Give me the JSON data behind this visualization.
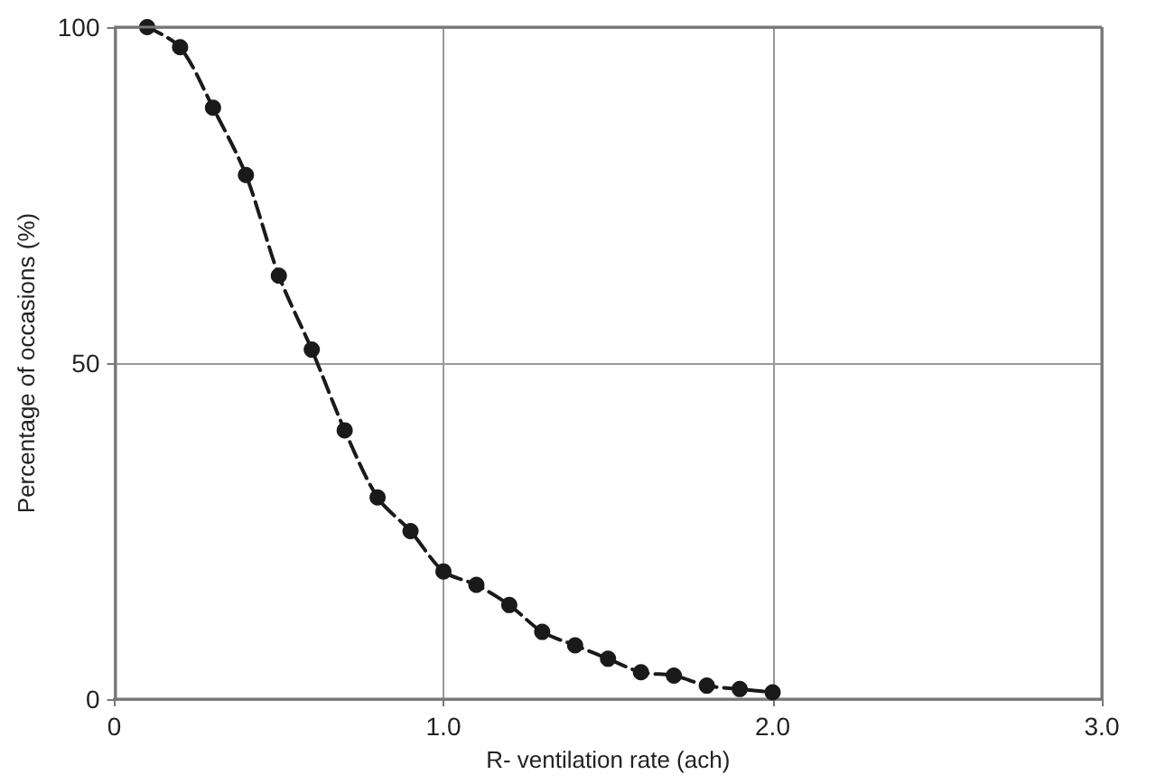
{
  "chart_data": {
    "type": "line",
    "xlabel": "R- ventilation rate (ach)",
    "ylabel": "Percentage of occasions (%)",
    "x": [
      0.1,
      0.2,
      0.3,
      0.4,
      0.5,
      0.6,
      0.7,
      0.8,
      0.9,
      1.0,
      1.1,
      1.2,
      1.3,
      1.4,
      1.5,
      1.6,
      1.7,
      1.8,
      1.9,
      2.0
    ],
    "series": [
      {
        "color": "#1a1a1a",
        "values": [
          100,
          97,
          88,
          78,
          63,
          52,
          40,
          30,
          25,
          19,
          17,
          14,
          10,
          8,
          6,
          4,
          3.5,
          2,
          1.5,
          1
        ]
      }
    ],
    "xlim": [
      0,
      3
    ],
    "xticks": [
      0,
      {
        "value": 1,
        "label": "1.0"
      },
      {
        "value": 2,
        "label": "2.0"
      },
      {
        "value": 3,
        "label": "3.0"
      }
    ],
    "ylim": [
      0,
      100
    ],
    "yticks": [
      0,
      50,
      100
    ],
    "grid": true,
    "marker": "circle",
    "line_style": "dashed"
  }
}
